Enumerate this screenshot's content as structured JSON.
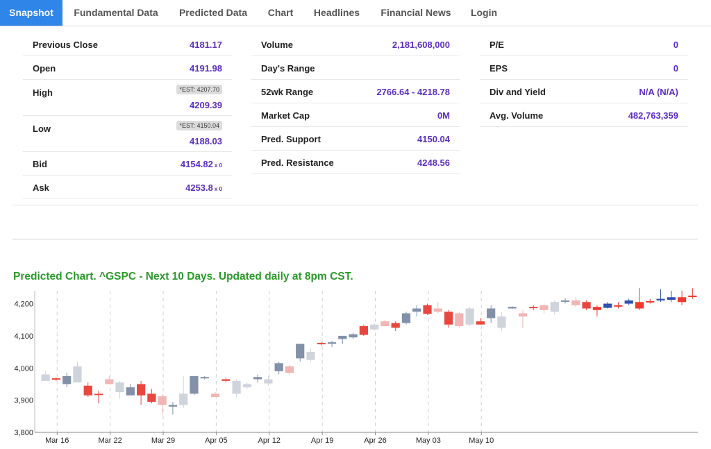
{
  "tabs": [
    {
      "label": "Snapshot",
      "active": true
    },
    {
      "label": "Fundamental Data"
    },
    {
      "label": "Predicted Data"
    },
    {
      "label": "Chart"
    },
    {
      "label": "Headlines"
    },
    {
      "label": "Financial News"
    },
    {
      "label": "Login"
    }
  ],
  "stats": {
    "col1": {
      "previous_close": {
        "label": "Previous Close",
        "value": "4181.17"
      },
      "open": {
        "label": "Open",
        "value": "4191.98"
      },
      "high": {
        "label": "High",
        "est": "*EST: 4207.70",
        "value": "4209.39"
      },
      "low": {
        "label": "Low",
        "est": "*EST: 4150.04",
        "value": "4188.03"
      },
      "bid": {
        "label": "Bid",
        "value": "4154.82",
        "size": "x 0"
      },
      "ask": {
        "label": "Ask",
        "value": "4253.8",
        "size": "x 0"
      }
    },
    "col2": {
      "volume": {
        "label": "Volume",
        "value": "2,181,608,000"
      },
      "days_range": {
        "label": "Day's Range",
        "value": ""
      },
      "wk52_range": {
        "label": "52wk Range",
        "value": "2766.64 - 4218.78"
      },
      "market_cap": {
        "label": "Market Cap",
        "value": "0M"
      },
      "pred_support": {
        "label": "Pred. Support",
        "value": "4150.04"
      },
      "pred_resistance": {
        "label": "Pred. Resistance",
        "value": "4248.56"
      }
    },
    "col3": {
      "pe": {
        "label": "P/E",
        "value": "0"
      },
      "eps": {
        "label": "EPS",
        "value": "0"
      },
      "div_yield": {
        "label": "Div and Yield",
        "value": "N/A (N/A)"
      },
      "avg_volume": {
        "label": "Avg. Volume",
        "value": "482,763,359"
      }
    }
  },
  "chart_title": "Predicted Chart. ^GSPC - Next 10 Days. Updated daily at 8pm CST.",
  "colors": {
    "accent_tab": "#2f86e8",
    "value_text": "#5a2fbf",
    "title_green": "#2a9a2a",
    "hist_up": "#8290a8",
    "hist_down_light": "#cfd3db",
    "hist_red_dark": "#e8473f",
    "hist_red_light": "#f2b5b5",
    "pred_blue": "#2f4fb0",
    "pred_red": "#ee3a2f"
  },
  "chart_data": {
    "type": "candlestick",
    "title": "Predicted Chart. ^GSPC - Next 10 Days. Updated daily at 8pm CST.",
    "y_ticks": [
      3800,
      3900,
      4000,
      4100,
      4200
    ],
    "y_tick_labels": [
      "3,800",
      "3,900",
      "4,000",
      "4,100",
      "4,200"
    ],
    "ylim": [
      3800,
      4240
    ],
    "x_ticks": [
      "Mar 16",
      "Mar 22",
      "Mar 29",
      "Apr 05",
      "Apr 12",
      "Apr 19",
      "Apr 26",
      "May 03",
      "May 10"
    ],
    "x_tick_positions": [
      1,
      6,
      11,
      16,
      21,
      26,
      31,
      36,
      41
    ],
    "grid": "vertical-dashed",
    "candles": [
      {
        "o": 3980,
        "h": 3990,
        "l": 3960,
        "c": 3960,
        "kind": "hist",
        "tone": "grey-light"
      },
      {
        "o": 3965,
        "h": 3970,
        "l": 3960,
        "c": 3968,
        "kind": "hist",
        "tone": "red-dark"
      },
      {
        "o": 3950,
        "h": 3985,
        "l": 3940,
        "c": 3975,
        "kind": "hist",
        "tone": "grey-dark"
      },
      {
        "o": 3955,
        "h": 4020,
        "l": 3955,
        "c": 4005,
        "kind": "hist",
        "tone": "grey-light"
      },
      {
        "o": 3945,
        "h": 3955,
        "l": 3910,
        "c": 3915,
        "kind": "hist",
        "tone": "red-dark"
      },
      {
        "o": 3920,
        "h": 3930,
        "l": 3890,
        "c": 3920,
        "kind": "hist",
        "tone": "red-dark"
      },
      {
        "o": 3965,
        "h": 3975,
        "l": 3950,
        "c": 3950,
        "kind": "hist",
        "tone": "red-light"
      },
      {
        "o": 3925,
        "h": 3960,
        "l": 3905,
        "c": 3955,
        "kind": "hist",
        "tone": "grey-light"
      },
      {
        "o": 3940,
        "h": 3950,
        "l": 3915,
        "c": 3915,
        "kind": "hist",
        "tone": "grey-dark"
      },
      {
        "o": 3950,
        "h": 3960,
        "l": 3885,
        "c": 3915,
        "kind": "hist",
        "tone": "red-dark"
      },
      {
        "o": 3920,
        "h": 3935,
        "l": 3890,
        "c": 3895,
        "kind": "hist",
        "tone": "red-dark"
      },
      {
        "o": 3912,
        "h": 3920,
        "l": 3855,
        "c": 3885,
        "kind": "hist",
        "tone": "red-light"
      },
      {
        "o": 3880,
        "h": 3895,
        "l": 3855,
        "c": 3885,
        "kind": "hist",
        "tone": "grey-dark"
      },
      {
        "o": 3920,
        "h": 3975,
        "l": 3875,
        "c": 3885,
        "kind": "hist",
        "tone": "grey-light"
      },
      {
        "o": 3920,
        "h": 3975,
        "l": 3915,
        "c": 3975,
        "kind": "hist",
        "tone": "grey-dark"
      },
      {
        "o": 3970,
        "h": 3975,
        "l": 3965,
        "c": 3972,
        "kind": "hist",
        "tone": "grey-dark"
      },
      {
        "o": 3920,
        "h": 3925,
        "l": 3910,
        "c": 3910,
        "kind": "hist",
        "tone": "red-light"
      },
      {
        "o": 3965,
        "h": 3970,
        "l": 3955,
        "c": 3960,
        "kind": "hist",
        "tone": "red-dark"
      },
      {
        "o": 3920,
        "h": 3965,
        "l": 3910,
        "c": 3960,
        "kind": "hist",
        "tone": "grey-light"
      },
      {
        "o": 3940,
        "h": 3955,
        "l": 3935,
        "c": 3950,
        "kind": "hist",
        "tone": "grey-light"
      },
      {
        "o": 3965,
        "h": 3980,
        "l": 3955,
        "c": 3972,
        "kind": "hist",
        "tone": "grey-dark"
      },
      {
        "o": 3965,
        "h": 3975,
        "l": 3945,
        "c": 3952,
        "kind": "hist",
        "tone": "grey-light"
      },
      {
        "o": 3990,
        "h": 4020,
        "l": 3980,
        "c": 4015,
        "kind": "hist",
        "tone": "grey-dark"
      },
      {
        "o": 3985,
        "h": 4010,
        "l": 3980,
        "c": 4005,
        "kind": "hist",
        "tone": "red-light"
      },
      {
        "o": 4030,
        "h": 4075,
        "l": 4020,
        "c": 4075,
        "kind": "hist",
        "tone": "grey-dark"
      },
      {
        "o": 4025,
        "h": 4060,
        "l": 4020,
        "c": 4050,
        "kind": "hist",
        "tone": "grey-light"
      },
      {
        "o": 4075,
        "h": 4080,
        "l": 4070,
        "c": 4078,
        "kind": "hist",
        "tone": "red-dark"
      },
      {
        "o": 4075,
        "h": 4085,
        "l": 4065,
        "c": 4080,
        "kind": "hist",
        "tone": "grey-dark"
      },
      {
        "o": 4090,
        "h": 4100,
        "l": 4075,
        "c": 4100,
        "kind": "hist",
        "tone": "grey-dark"
      },
      {
        "o": 4095,
        "h": 4110,
        "l": 4090,
        "c": 4105,
        "kind": "hist",
        "tone": "grey-dark"
      },
      {
        "o": 4103,
        "h": 4135,
        "l": 4100,
        "c": 4130,
        "kind": "hist",
        "tone": "red-dark"
      },
      {
        "o": 4120,
        "h": 4140,
        "l": 4115,
        "c": 4135,
        "kind": "hist",
        "tone": "grey-light"
      },
      {
        "o": 4145,
        "h": 4150,
        "l": 4130,
        "c": 4130,
        "kind": "hist",
        "tone": "red-light"
      },
      {
        "o": 4140,
        "h": 4145,
        "l": 4115,
        "c": 4125,
        "kind": "hist",
        "tone": "red-dark"
      },
      {
        "o": 4140,
        "h": 4175,
        "l": 4135,
        "c": 4170,
        "kind": "hist",
        "tone": "grey-dark"
      },
      {
        "o": 4185,
        "h": 4195,
        "l": 4160,
        "c": 4175,
        "kind": "hist",
        "tone": "grey-dark"
      },
      {
        "o": 4195,
        "h": 4200,
        "l": 4165,
        "c": 4168,
        "kind": "hist",
        "tone": "red-dark"
      },
      {
        "o": 4185,
        "h": 4205,
        "l": 4170,
        "c": 4175,
        "kind": "hist",
        "tone": "red-light"
      },
      {
        "o": 4175,
        "h": 4180,
        "l": 4125,
        "c": 4135,
        "kind": "hist",
        "tone": "red-dark"
      },
      {
        "o": 4170,
        "h": 4175,
        "l": 4125,
        "c": 4130,
        "kind": "hist",
        "tone": "red-light"
      },
      {
        "o": 4185,
        "h": 4190,
        "l": 4130,
        "c": 4135,
        "kind": "hist",
        "tone": "grey-light"
      },
      {
        "o": 4145,
        "h": 4155,
        "l": 4135,
        "c": 4135,
        "kind": "hist",
        "tone": "red-dark"
      },
      {
        "o": 4185,
        "h": 4195,
        "l": 4140,
        "c": 4155,
        "kind": "hist",
        "tone": "grey-dark"
      },
      {
        "o": 4160,
        "h": 4175,
        "l": 4115,
        "c": 4125,
        "kind": "hist",
        "tone": "grey-light"
      },
      {
        "o": 4185,
        "h": 4192,
        "l": 4183,
        "c": 4190,
        "kind": "hist",
        "tone": "grey-dark"
      },
      {
        "o": 4170,
        "h": 4180,
        "l": 4125,
        "c": 4160,
        "kind": "hist",
        "tone": "red-light"
      },
      {
        "o": 4187,
        "h": 4195,
        "l": 4180,
        "c": 4190,
        "kind": "hist",
        "tone": "red-dark"
      },
      {
        "o": 4195,
        "h": 4200,
        "l": 4170,
        "c": 4180,
        "kind": "hist",
        "tone": "red-light"
      },
      {
        "o": 4175,
        "h": 4210,
        "l": 4165,
        "c": 4205,
        "kind": "hist",
        "tone": "grey-light"
      },
      {
        "o": 4208,
        "h": 4218,
        "l": 4200,
        "c": 4210,
        "kind": "hist",
        "tone": "grey-dark"
      },
      {
        "o": 4210,
        "h": 4220,
        "l": 4190,
        "c": 4195,
        "kind": "hist",
        "tone": "red-light"
      },
      {
        "o": 4205,
        "h": 4210,
        "l": 4180,
        "c": 4185,
        "kind": "hist",
        "tone": "red-dark"
      },
      {
        "o": 4190,
        "h": 4195,
        "l": 4160,
        "c": 4180,
        "kind": "pred",
        "tone": "red"
      },
      {
        "o": 4187,
        "h": 4205,
        "l": 4185,
        "c": 4200,
        "kind": "pred",
        "tone": "blue"
      },
      {
        "o": 4195,
        "h": 4205,
        "l": 4185,
        "c": 4192,
        "kind": "pred",
        "tone": "red"
      },
      {
        "o": 4200,
        "h": 4215,
        "l": 4195,
        "c": 4210,
        "kind": "pred",
        "tone": "blue"
      },
      {
        "o": 4205,
        "h": 4250,
        "l": 4180,
        "c": 4185,
        "kind": "pred",
        "tone": "red"
      },
      {
        "o": 4205,
        "h": 4215,
        "l": 4200,
        "c": 4208,
        "kind": "pred",
        "tone": "red"
      },
      {
        "o": 4210,
        "h": 4245,
        "l": 4205,
        "c": 4215,
        "kind": "pred",
        "tone": "blue"
      },
      {
        "o": 4212,
        "h": 4240,
        "l": 4205,
        "c": 4220,
        "kind": "pred",
        "tone": "blue"
      },
      {
        "o": 4220,
        "h": 4240,
        "l": 4195,
        "c": 4205,
        "kind": "pred",
        "tone": "red"
      },
      {
        "o": 4225,
        "h": 4248,
        "l": 4215,
        "c": 4222,
        "kind": "pred",
        "tone": "red"
      }
    ]
  }
}
